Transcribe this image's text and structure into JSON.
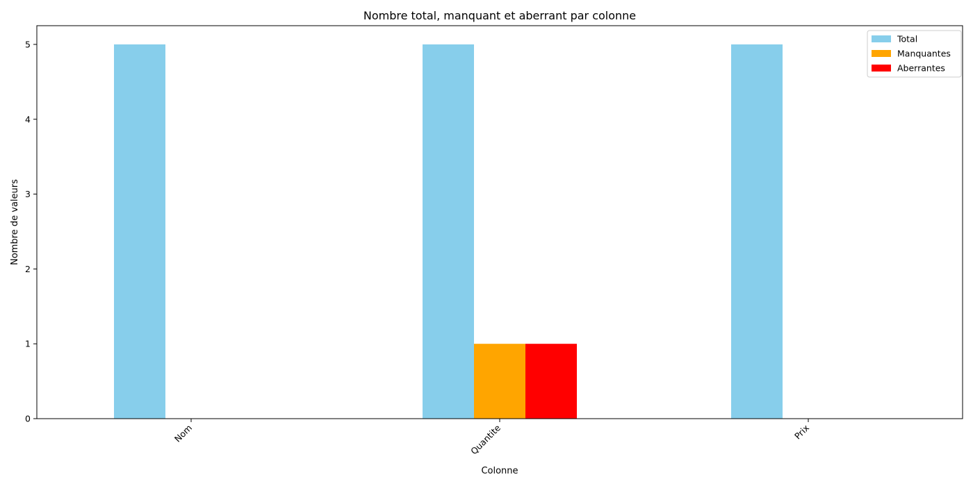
{
  "chart_data": {
    "type": "bar",
    "title": "Nombre total, manquant et aberrant par colonne",
    "xlabel": "Colonne",
    "ylabel": "Nombre de valeurs",
    "categories": [
      "Nom",
      "Quantite",
      "Prix"
    ],
    "series": [
      {
        "name": "Total",
        "color": "#87CEEB",
        "values": [
          5,
          5,
          5
        ]
      },
      {
        "name": "Manquantes",
        "color": "#FFA500",
        "values": [
          0,
          1,
          0
        ]
      },
      {
        "name": "Aberrantes",
        "color": "#FF0000",
        "values": [
          0,
          1,
          0
        ]
      }
    ],
    "ylim": [
      0,
      5.25
    ],
    "yticks": [
      0,
      1,
      2,
      3,
      4,
      5
    ],
    "legend_position": "top-right",
    "grid": false
  }
}
